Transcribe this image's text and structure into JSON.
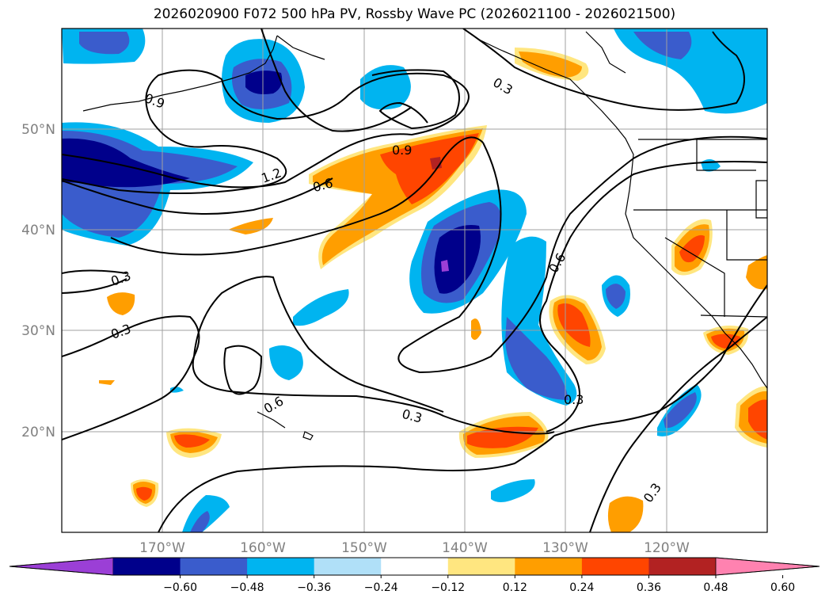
{
  "title": "2026020900 F072 500 hPa PV, Rossby Wave PC (2026021100 - 2026021500)",
  "lat_labels": [
    "50°N",
    "40°N",
    "30°N",
    "20°N"
  ],
  "lon_labels": [
    "170°W",
    "160°W",
    "150°W",
    "140°W",
    "130°W",
    "120°W"
  ],
  "colorbar": {
    "ticks": [
      "−0.60",
      "−0.48",
      "−0.36",
      "−0.24",
      "−0.12",
      "0.12",
      "0.24",
      "0.36",
      "0.48",
      "0.60"
    ],
    "colors": [
      "#9b3fd6",
      "#00008b",
      "#3a5ccc",
      "#00b4f0",
      "#b0e0f8",
      "#ffffff",
      "#ffe680",
      "#ff9e00",
      "#ff4500",
      "#b22222",
      "#ff82b0"
    ]
  },
  "contour_labels": [
    "0.9",
    "1.2",
    "0.6",
    "0.9",
    "0.3",
    "0.3",
    "0.3",
    "0.6",
    "0.6",
    "0.3",
    "0.3",
    "0.3"
  ]
}
